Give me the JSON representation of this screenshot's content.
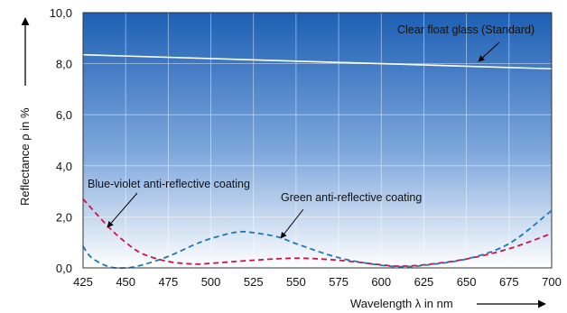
{
  "chart_data": {
    "type": "line",
    "xlabel": "Wavelength λ in nm",
    "ylabel": "Reflectance ρ in %",
    "xlim": [
      425,
      700
    ],
    "ylim": [
      0,
      10
    ],
    "x_ticks": [
      "425",
      "450",
      "475",
      "500",
      "525",
      "550",
      "575",
      "600",
      "625",
      "650",
      "675",
      "700"
    ],
    "y_ticks": [
      "0,0",
      "2,0",
      "4,0",
      "6,0",
      "8,0",
      "10,0"
    ],
    "grid": true,
    "background": {
      "top": "#1d5fb4",
      "bottom": "#ffffff"
    },
    "series": [
      {
        "name": "Clear float glass (Standard)",
        "color": "#ffffff",
        "style": "solid",
        "x": [
          425,
          700
        ],
        "y": [
          8.35,
          7.8
        ]
      },
      {
        "name": "Blue-violet anti-reflective coating",
        "color": "#d0144a",
        "style": "dashed",
        "x": [
          425,
          440,
          450,
          460,
          475,
          490,
          500,
          525,
          550,
          575,
          600,
          610,
          625,
          650,
          675,
          700
        ],
        "y": [
          2.7,
          1.6,
          1.0,
          0.55,
          0.25,
          0.15,
          0.18,
          0.3,
          0.38,
          0.3,
          0.12,
          0.07,
          0.12,
          0.35,
          0.75,
          1.35
        ]
      },
      {
        "name": "Green anti-reflective coating",
        "color": "#1f78b4",
        "style": "dashed",
        "x": [
          425,
          430,
          440,
          450,
          460,
          475,
          490,
          500,
          515,
          525,
          540,
          550,
          575,
          600,
          615,
          625,
          650,
          675,
          700
        ],
        "y": [
          0.85,
          0.4,
          0.05,
          0.0,
          0.12,
          0.45,
          0.9,
          1.15,
          1.4,
          1.38,
          1.2,
          0.95,
          0.4,
          0.1,
          0.05,
          0.1,
          0.35,
          0.95,
          2.25
        ]
      }
    ]
  },
  "annotations": {
    "clear": "Clear float glass (Standard)",
    "blue": "Blue-violet anti-reflective coating",
    "green": "Green anti-reflective coating"
  }
}
